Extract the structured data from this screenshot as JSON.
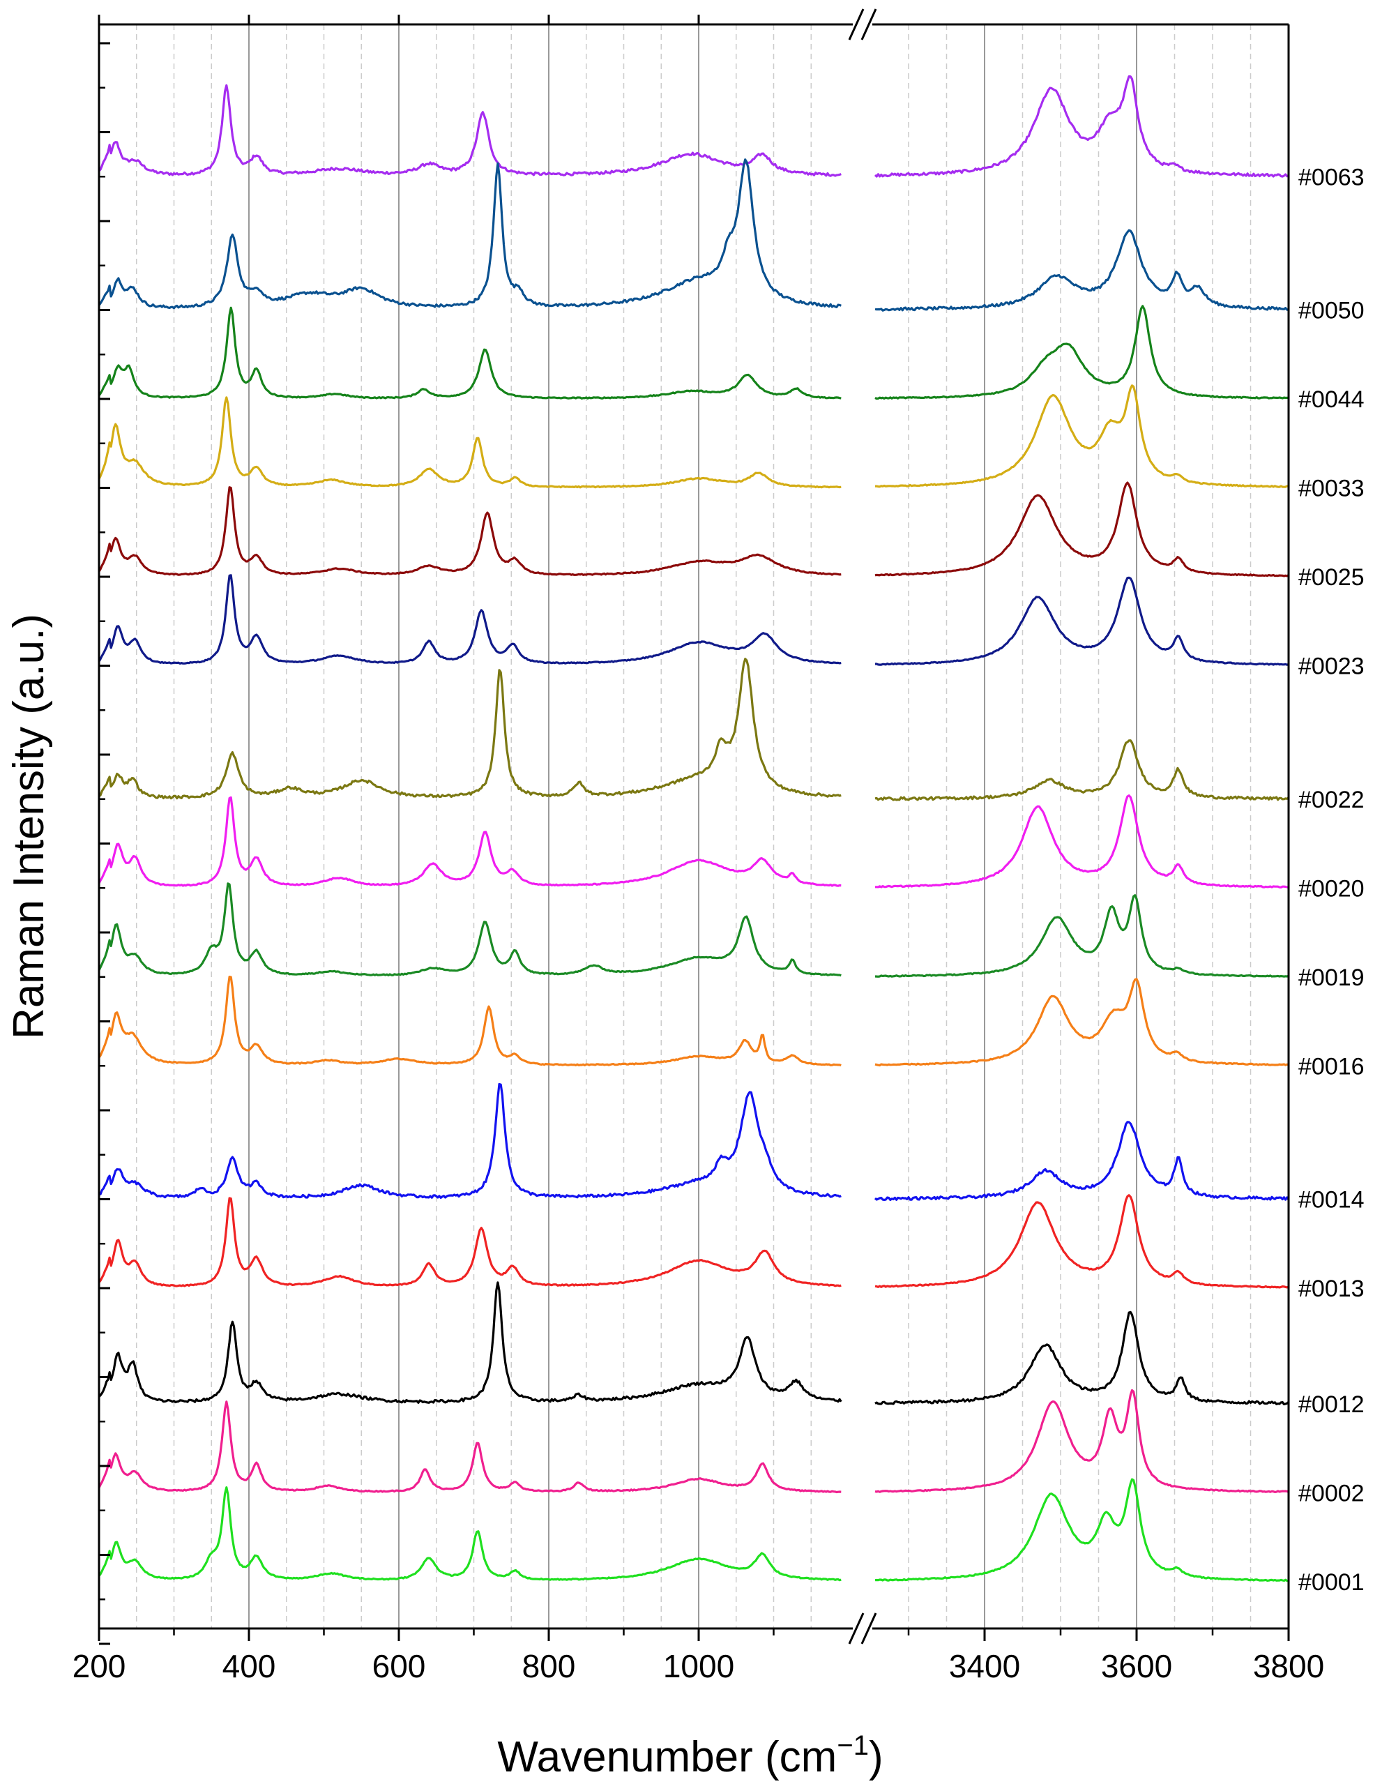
{
  "chart_data": {
    "type": "line",
    "title": "",
    "xlabel": "Wavenumber (cm",
    "xlabel_sup": "−1",
    "xlabel_close": ")",
    "ylabel": "Raman Intensity (a.u.)",
    "x_break": {
      "left_range": [
        200,
        1200
      ],
      "right_range": [
        3250,
        3800
      ]
    },
    "x_ticks_left": [
      200,
      400,
      600,
      800,
      1000
    ],
    "x_ticks_right": [
      3400,
      3600,
      3800
    ],
    "x_tick_labels_left": [
      "200",
      "400",
      "600",
      "800",
      "1000"
    ],
    "x_tick_labels_right": [
      "3400",
      "3600",
      "3800"
    ],
    "grid": {
      "major_vertical": true,
      "minor_vertical_dashed": true,
      "horizontal": false
    },
    "offset_step": 1,
    "legend": "right-side labels at each trace",
    "series": [
      {
        "name": "#0063",
        "color": "#a52cf0",
        "offset": 16.5,
        "amp": 1.3,
        "left_peaks": [
          [
            222,
            0.35,
            8
          ],
          [
            248,
            0.15,
            15
          ],
          [
            370,
            1.0,
            7
          ],
          [
            410,
            0.2,
            10
          ],
          [
            520,
            0.08,
            40
          ],
          [
            640,
            0.12,
            18
          ],
          [
            712,
            0.7,
            10
          ],
          [
            990,
            0.25,
            50
          ],
          [
            1085,
            0.2,
            15
          ]
        ],
        "right_peaks": [
          [
            3488,
            0.95,
            28
          ],
          [
            3565,
            0.45,
            20
          ],
          [
            3592,
            0.9,
            12
          ],
          [
            3650,
            0.05,
            8
          ]
        ]
      },
      {
        "name": "#0050",
        "color": "#0a5190",
        "offset": 15,
        "amp": 1.6,
        "left_peaks": [
          [
            225,
            0.3,
            8
          ],
          [
            245,
            0.2,
            10
          ],
          [
            378,
            0.8,
            9
          ],
          [
            410,
            0.15,
            10
          ],
          [
            550,
            0.2,
            30
          ],
          [
            480,
            0.15,
            40
          ],
          [
            732,
            1.6,
            7
          ],
          [
            760,
            0.15,
            8
          ],
          [
            1000,
            0.3,
            60
          ],
          [
            1063,
            1.5,
            12
          ],
          [
            1040,
            0.3,
            10
          ]
        ],
        "right_peaks": [
          [
            3495,
            0.35,
            30
          ],
          [
            3590,
            0.85,
            20
          ],
          [
            3653,
            0.3,
            8
          ],
          [
            3680,
            0.2,
            12
          ]
        ]
      },
      {
        "name": "#0044",
        "color": "#15831a",
        "offset": 14,
        "amp": 1.0,
        "left_peaks": [
          [
            225,
            0.3,
            8
          ],
          [
            240,
            0.3,
            8
          ],
          [
            376,
            1.0,
            7
          ],
          [
            410,
            0.3,
            8
          ],
          [
            515,
            0.05,
            20
          ],
          [
            633,
            0.1,
            10
          ],
          [
            715,
            0.55,
            10
          ],
          [
            990,
            0.08,
            40
          ],
          [
            1065,
            0.25,
            15
          ],
          [
            1130,
            0.1,
            10
          ]
        ],
        "right_peaks": [
          [
            3480,
            0.25,
            25
          ],
          [
            3510,
            0.5,
            25
          ],
          [
            3608,
            1.0,
            12
          ]
        ]
      },
      {
        "name": "#0033",
        "color": "#d4ad15",
        "offset": 13,
        "amp": 1.0,
        "left_peaks": [
          [
            222,
            0.65,
            8
          ],
          [
            248,
            0.25,
            15
          ],
          [
            370,
            1.0,
            7
          ],
          [
            410,
            0.2,
            10
          ],
          [
            510,
            0.08,
            25
          ],
          [
            640,
            0.2,
            15
          ],
          [
            705,
            0.55,
            8
          ],
          [
            755,
            0.1,
            8
          ],
          [
            1000,
            0.1,
            40
          ],
          [
            1080,
            0.15,
            15
          ]
        ],
        "right_peaks": [
          [
            3490,
            1.0,
            28
          ],
          [
            3565,
            0.5,
            18
          ],
          [
            3595,
            0.95,
            12
          ],
          [
            3653,
            0.07,
            8
          ]
        ]
      },
      {
        "name": "#0025",
        "color": "#8c0a0a",
        "offset": 12,
        "amp": 1.0,
        "left_peaks": [
          [
            222,
            0.4,
            8
          ],
          [
            248,
            0.2,
            12
          ],
          [
            375,
            1.0,
            7
          ],
          [
            410,
            0.2,
            10
          ],
          [
            520,
            0.08,
            30
          ],
          [
            640,
            0.1,
            20
          ],
          [
            718,
            0.7,
            10
          ],
          [
            755,
            0.15,
            10
          ],
          [
            1000,
            0.15,
            50
          ],
          [
            1080,
            0.2,
            30
          ]
        ],
        "right_peaks": [
          [
            3470,
            0.9,
            30
          ],
          [
            3588,
            1.0,
            15
          ],
          [
            3655,
            0.15,
            8
          ]
        ]
      },
      {
        "name": "#0023",
        "color": "#101a8a",
        "offset": 11,
        "amp": 1.0,
        "left_peaks": [
          [
            225,
            0.4,
            8
          ],
          [
            248,
            0.25,
            10
          ],
          [
            375,
            1.0,
            7
          ],
          [
            410,
            0.3,
            10
          ],
          [
            520,
            0.1,
            30
          ],
          [
            640,
            0.25,
            10
          ],
          [
            710,
            0.6,
            10
          ],
          [
            752,
            0.2,
            10
          ],
          [
            1000,
            0.25,
            50
          ],
          [
            1088,
            0.3,
            20
          ]
        ],
        "right_peaks": [
          [
            3470,
            0.75,
            28
          ],
          [
            3590,
            0.95,
            18
          ],
          [
            3655,
            0.25,
            8
          ]
        ]
      },
      {
        "name": "#0022",
        "color": "#7b7812",
        "offset": 9.5,
        "amp": 1.5,
        "left_peaks": [
          [
            225,
            0.25,
            8
          ],
          [
            245,
            0.2,
            8
          ],
          [
            378,
            0.5,
            10
          ],
          [
            455,
            0.1,
            20
          ],
          [
            550,
            0.2,
            30
          ],
          [
            735,
            1.45,
            7
          ],
          [
            840,
            0.15,
            8
          ],
          [
            1000,
            0.2,
            60
          ],
          [
            1030,
            0.35,
            10
          ],
          [
            1063,
            1.45,
            12
          ]
        ],
        "right_peaks": [
          [
            3485,
            0.2,
            25
          ],
          [
            3590,
            0.65,
            15
          ],
          [
            3655,
            0.3,
            8
          ]
        ]
      },
      {
        "name": "#0020",
        "color": "#f01ef0",
        "offset": 8.5,
        "amp": 1.0,
        "left_peaks": [
          [
            225,
            0.45,
            8
          ],
          [
            248,
            0.3,
            10
          ],
          [
            375,
            1.0,
            7
          ],
          [
            410,
            0.3,
            10
          ],
          [
            520,
            0.1,
            25
          ],
          [
            645,
            0.25,
            15
          ],
          [
            715,
            0.6,
            10
          ],
          [
            752,
            0.15,
            10
          ],
          [
            1000,
            0.3,
            50
          ],
          [
            1085,
            0.25,
            15
          ],
          [
            1125,
            0.1,
            5
          ]
        ],
        "right_peaks": [
          [
            3470,
            0.9,
            25
          ],
          [
            3590,
            1.0,
            15
          ],
          [
            3655,
            0.2,
            8
          ]
        ]
      },
      {
        "name": "#0019",
        "color": "#1a8a24",
        "offset": 7.5,
        "amp": 1.0,
        "left_peaks": [
          [
            223,
            0.55,
            8
          ],
          [
            248,
            0.2,
            12
          ],
          [
            350,
            0.25,
            10
          ],
          [
            373,
            1.0,
            7
          ],
          [
            410,
            0.25,
            10
          ],
          [
            510,
            0.05,
            25
          ],
          [
            645,
            0.08,
            20
          ],
          [
            715,
            0.6,
            10
          ],
          [
            755,
            0.25,
            8
          ],
          [
            860,
            0.1,
            15
          ],
          [
            1000,
            0.2,
            50
          ],
          [
            1063,
            0.6,
            12
          ],
          [
            1125,
            0.15,
            5
          ]
        ],
        "right_peaks": [
          [
            3495,
            0.65,
            25
          ],
          [
            3567,
            0.65,
            12
          ],
          [
            3598,
            0.8,
            10
          ],
          [
            3655,
            0.05,
            8
          ]
        ]
      },
      {
        "name": "#0016",
        "color": "#f57f17",
        "offset": 6.5,
        "amp": 1.0,
        "left_peaks": [
          [
            223,
            0.5,
            8
          ],
          [
            245,
            0.3,
            15
          ],
          [
            375,
            1.0,
            7
          ],
          [
            410,
            0.2,
            10
          ],
          [
            505,
            0.05,
            20
          ],
          [
            600,
            0.07,
            30
          ],
          [
            720,
            0.65,
            8
          ],
          [
            755,
            0.1,
            8
          ],
          [
            1000,
            0.1,
            40
          ],
          [
            1062,
            0.25,
            10
          ],
          [
            1085,
            0.3,
            4
          ],
          [
            1125,
            0.1,
            10
          ]
        ],
        "right_peaks": [
          [
            3490,
            0.75,
            25
          ],
          [
            3570,
            0.45,
            20
          ],
          [
            3600,
            0.8,
            12
          ],
          [
            3653,
            0.08,
            8
          ]
        ]
      },
      {
        "name": "#0014",
        "color": "#1212f0",
        "offset": 5,
        "amp": 1.6,
        "left_peaks": [
          [
            225,
            0.3,
            8
          ],
          [
            248,
            0.15,
            15
          ],
          [
            335,
            0.1,
            8
          ],
          [
            378,
            0.45,
            9
          ],
          [
            410,
            0.15,
            10
          ],
          [
            550,
            0.15,
            30
          ],
          [
            735,
            1.3,
            8
          ],
          [
            1000,
            0.15,
            60
          ],
          [
            1068,
            1.1,
            15
          ],
          [
            1030,
            0.2,
            10
          ],
          [
            1090,
            0.15,
            10
          ]
        ],
        "right_peaks": [
          [
            3480,
            0.3,
            25
          ],
          [
            3590,
            0.85,
            18
          ],
          [
            3655,
            0.4,
            7
          ]
        ]
      },
      {
        "name": "#0013",
        "color": "#f02323",
        "offset": 4,
        "amp": 1.0,
        "left_peaks": [
          [
            225,
            0.5,
            8
          ],
          [
            248,
            0.25,
            10
          ],
          [
            375,
            1.0,
            7
          ],
          [
            410,
            0.3,
            10
          ],
          [
            520,
            0.12,
            25
          ],
          [
            640,
            0.25,
            10
          ],
          [
            710,
            0.65,
            10
          ],
          [
            752,
            0.2,
            10
          ],
          [
            1000,
            0.3,
            50
          ],
          [
            1088,
            0.35,
            15
          ]
        ],
        "right_peaks": [
          [
            3470,
            0.95,
            28
          ],
          [
            3590,
            1.0,
            15
          ],
          [
            3655,
            0.12,
            8
          ]
        ]
      },
      {
        "name": "#0012",
        "color": "#000000",
        "offset": 2.7,
        "amp": 1.35,
        "left_peaks": [
          [
            225,
            0.5,
            8
          ],
          [
            245,
            0.4,
            8
          ],
          [
            378,
            0.9,
            7
          ],
          [
            410,
            0.2,
            10
          ],
          [
            520,
            0.1,
            40
          ],
          [
            732,
            1.35,
            7
          ],
          [
            840,
            0.07,
            8
          ],
          [
            1000,
            0.2,
            60
          ],
          [
            1065,
            0.65,
            13
          ],
          [
            1130,
            0.2,
            12
          ]
        ],
        "right_peaks": [
          [
            3480,
            0.65,
            25
          ],
          [
            3592,
            1.0,
            13
          ],
          [
            3658,
            0.25,
            7
          ]
        ]
      },
      {
        "name": "#0002",
        "color": "#f01f8f",
        "offset": 1.7,
        "amp": 1.0,
        "left_peaks": [
          [
            222,
            0.4,
            8
          ],
          [
            248,
            0.2,
            12
          ],
          [
            370,
            1.0,
            7
          ],
          [
            410,
            0.3,
            8
          ],
          [
            505,
            0.07,
            20
          ],
          [
            635,
            0.25,
            8
          ],
          [
            705,
            0.55,
            8
          ],
          [
            755,
            0.1,
            8
          ],
          [
            840,
            0.1,
            8
          ],
          [
            1000,
            0.15,
            40
          ],
          [
            1085,
            0.3,
            10
          ]
        ],
        "right_peaks": [
          [
            3490,
            1.0,
            25
          ],
          [
            3565,
            0.75,
            12
          ],
          [
            3595,
            1.0,
            10
          ]
        ]
      },
      {
        "name": "#0001",
        "color": "#1fe01f",
        "offset": 0.7,
        "amp": 1.0,
        "left_peaks": [
          [
            223,
            0.4,
            8
          ],
          [
            248,
            0.2,
            12
          ],
          [
            350,
            0.2,
            10
          ],
          [
            370,
            1.0,
            7
          ],
          [
            410,
            0.25,
            10
          ],
          [
            510,
            0.08,
            25
          ],
          [
            640,
            0.25,
            12
          ],
          [
            705,
            0.55,
            8
          ],
          [
            755,
            0.1,
            8
          ],
          [
            1000,
            0.25,
            50
          ],
          [
            1085,
            0.25,
            12
          ]
        ],
        "right_peaks": [
          [
            3488,
            0.95,
            28
          ],
          [
            3560,
            0.55,
            15
          ],
          [
            3595,
            1.0,
            12
          ],
          [
            3653,
            0.08,
            8
          ]
        ]
      }
    ]
  }
}
